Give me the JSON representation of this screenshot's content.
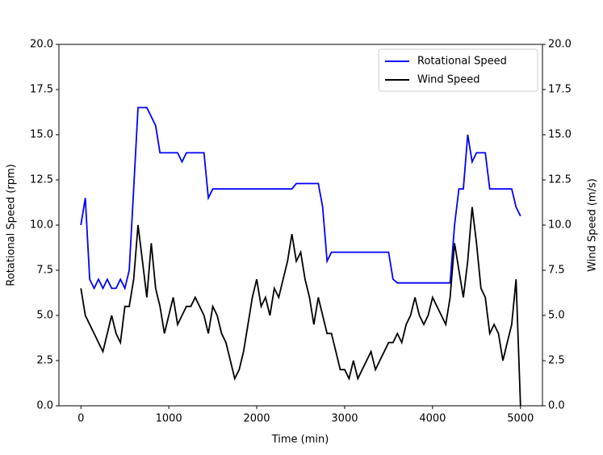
{
  "chart_data": {
    "type": "line",
    "x": [
      0,
      50,
      100,
      150,
      200,
      250,
      300,
      350,
      400,
      450,
      500,
      550,
      600,
      650,
      700,
      750,
      800,
      850,
      900,
      950,
      1000,
      1050,
      1100,
      1150,
      1200,
      1250,
      1300,
      1350,
      1400,
      1450,
      1500,
      1550,
      1600,
      1650,
      1700,
      1750,
      1800,
      1850,
      1900,
      1950,
      2000,
      2050,
      2100,
      2150,
      2200,
      2250,
      2300,
      2350,
      2400,
      2450,
      2500,
      2550,
      2600,
      2650,
      2700,
      2750,
      2800,
      2850,
      2900,
      2950,
      3000,
      3050,
      3100,
      3150,
      3200,
      3250,
      3300,
      3350,
      3400,
      3450,
      3500,
      3550,
      3600,
      3650,
      3700,
      3750,
      3800,
      3850,
      3900,
      3950,
      4000,
      4050,
      4100,
      4150,
      4200,
      4250,
      4300,
      4350,
      4400,
      4450,
      4500,
      4550,
      4600,
      4650,
      4700,
      4750,
      4800,
      4850,
      4900,
      4950,
      5000
    ],
    "series": [
      {
        "name": "Rotational Speed",
        "color": "#0000ff",
        "axis": "y",
        "values": [
          10,
          11.5,
          7,
          6.5,
          7,
          6.5,
          7,
          6.5,
          6.5,
          7,
          6.5,
          7.5,
          12,
          16.5,
          16.5,
          16.5,
          16,
          15.5,
          14,
          14,
          14,
          14,
          14,
          13.5,
          14,
          14,
          14,
          14,
          14,
          11.5,
          12,
          12,
          12,
          12,
          12,
          12,
          12,
          12,
          12,
          12,
          12,
          12,
          12,
          12,
          12,
          12,
          12,
          12,
          12,
          12.3,
          12.3,
          12.3,
          12.3,
          12.3,
          12.3,
          11,
          8,
          8.5,
          8.5,
          8.5,
          8.5,
          8.5,
          8.5,
          8.5,
          8.5,
          8.5,
          8.5,
          8.5,
          8.5,
          8.5,
          8.5,
          7,
          6.8,
          6.8,
          6.8,
          6.8,
          6.8,
          6.8,
          6.8,
          6.8,
          6.8,
          6.8,
          6.8,
          6.8,
          6.8,
          10,
          12,
          12,
          15,
          13.5,
          14,
          14,
          14,
          12,
          12,
          12,
          12,
          12,
          12,
          11,
          10.5
        ]
      },
      {
        "name": "Wind Speed",
        "color": "#000000",
        "axis": "y2",
        "values": [
          6.5,
          5,
          4.5,
          4,
          3.5,
          3,
          4,
          5,
          4,
          3.5,
          5.5,
          5.5,
          7,
          10,
          8,
          6,
          9,
          6.5,
          5.5,
          4,
          5,
          6,
          4.5,
          5,
          5.5,
          5.5,
          6,
          5.5,
          5,
          4,
          5.5,
          5,
          4,
          3.5,
          2.5,
          1.5,
          2,
          3,
          4.5,
          6,
          7,
          5.5,
          6,
          5,
          6.5,
          6,
          7,
          8,
          9.5,
          8,
          8.5,
          7,
          6,
          4.5,
          6,
          5,
          4,
          4,
          3,
          2,
          2,
          1.5,
          2.5,
          1.5,
          2,
          2.5,
          3,
          2,
          2.5,
          3,
          3.5,
          3.5,
          4,
          3.5,
          4.5,
          5,
          6,
          5,
          4.5,
          5,
          6,
          5.5,
          5,
          4.5,
          6,
          9,
          7.5,
          6,
          8,
          11,
          9,
          6.5,
          6,
          4,
          4.5,
          4,
          2.5,
          3.5,
          4.5,
          7,
          0
        ]
      }
    ],
    "x_label": "Time (min)",
    "y_label": "Rotational Speed (rpm)",
    "y2_label": "Wind Speed (m/s)",
    "xlim": [
      -250,
      5250
    ],
    "xticks": [
      0,
      1000,
      2000,
      3000,
      4000,
      5000
    ],
    "ylim": [
      0,
      20
    ],
    "yticks": [
      {
        "value": 0,
        "label": "0.0"
      },
      2.5,
      {
        "value": 5,
        "label": "5.0"
      },
      7.5,
      {
        "value": 10,
        "label": "10.0"
      },
      12.5,
      {
        "value": 15,
        "label": "15.0"
      },
      17.5,
      {
        "value": 20,
        "label": "20.0"
      }
    ],
    "y2lim": [
      0,
      20
    ],
    "y2ticks": [
      {
        "value": 0,
        "label": "0.0"
      },
      2.5,
      {
        "value": 5,
        "label": "5.0"
      },
      7.5,
      {
        "value": 10,
        "label": "10.0"
      },
      12.5,
      {
        "value": 15,
        "label": "15.0"
      },
      17.5,
      {
        "value": 20,
        "label": "20.0"
      }
    ],
    "legend": "upper right",
    "grid": false
  }
}
